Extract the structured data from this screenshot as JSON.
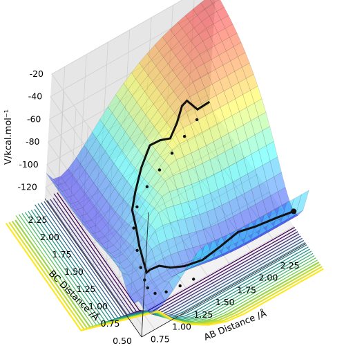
{
  "chart_data": {
    "type": "surface3d",
    "zlabel": "V/kcal.mol⁻¹",
    "xlabel": "AB Distance /Å",
    "ylabel": "BC Distance /Å",
    "x_ticks": [
      "0.75",
      "1.00",
      "1.25",
      "1.50",
      "1.75",
      "2.00",
      "2.25"
    ],
    "y_ticks": [
      "0.50",
      "0.75",
      "1.00",
      "1.25",
      "1.50",
      "1.75",
      "2.00",
      "2.25"
    ],
    "z_ticks": [
      "-20",
      "-40",
      "-60",
      "-80",
      "-100",
      "-120"
    ],
    "xlim": [
      0.6,
      2.5
    ],
    "ylim": [
      0.5,
      2.5
    ],
    "zlim": [
      -130,
      -20
    ],
    "colormap_surface": "jet",
    "colormap_contour": "viridis",
    "grid": true,
    "trajectory": [
      [
        2.45,
        2.42,
        -120
      ],
      [
        2.3,
        2.4,
        -119
      ],
      [
        2.2,
        2.45,
        -110
      ],
      [
        2.1,
        2.38,
        -106
      ],
      [
        2.0,
        2.3,
        -112
      ],
      [
        1.9,
        2.25,
        -118
      ],
      [
        1.75,
        2.2,
        -110
      ],
      [
        1.6,
        2.15,
        -105
      ],
      [
        1.45,
        2.05,
        -112
      ],
      [
        1.3,
        1.9,
        -118
      ],
      [
        1.15,
        1.7,
        -115
      ],
      [
        1.05,
        1.45,
        -110
      ],
      [
        0.98,
        1.25,
        -112
      ],
      [
        0.95,
        1.1,
        -116
      ],
      [
        0.93,
        1.0,
        -118
      ],
      [
        0.92,
        0.92,
        -110
      ],
      [
        0.98,
        0.85,
        -105
      ],
      [
        1.1,
        0.82,
        -110
      ],
      [
        1.25,
        0.8,
        -114
      ],
      [
        1.45,
        0.78,
        -116
      ],
      [
        1.65,
        0.77,
        -112
      ],
      [
        1.85,
        0.77,
        -108
      ],
      [
        2.05,
        0.77,
        -112
      ],
      [
        2.3,
        0.77,
        -115
      ],
      [
        2.5,
        0.77,
        -118
      ]
    ],
    "trajectory_projection": [
      [
        2.3,
        2.4
      ],
      [
        2.1,
        2.3
      ],
      [
        1.9,
        2.2
      ],
      [
        1.7,
        2.1
      ],
      [
        1.5,
        2.0
      ],
      [
        1.3,
        1.85
      ],
      [
        1.15,
        1.65
      ],
      [
        1.05,
        1.4
      ],
      [
        0.98,
        1.2
      ],
      [
        0.94,
        1.05
      ],
      [
        0.92,
        0.95
      ],
      [
        0.95,
        0.85
      ],
      [
        1.05,
        0.8
      ],
      [
        1.2,
        0.78
      ],
      [
        1.35,
        0.77
      ]
    ]
  }
}
